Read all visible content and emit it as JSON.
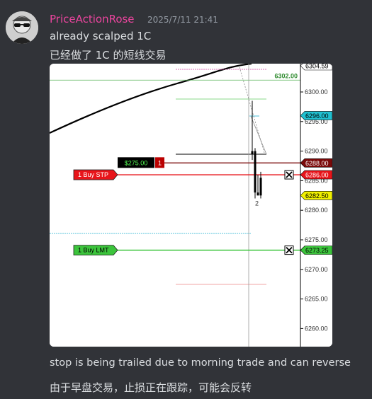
{
  "message": {
    "username": "PriceActionRose",
    "timestamp": "2025/7/11 21:41",
    "lines": [
      "already scalped 1C",
      "已经做了 1C 的短线交易",
      "stop is being trailed due to morning trade and can reverse",
      "由于早盘交易，止损正在跟踪，可能会反转"
    ]
  },
  "colors": {
    "username": "#eb459e",
    "stop_order": "#e8141a",
    "limit_order": "#3cc43c",
    "current_price_tag": "#20c0d0",
    "position_tag": "#7a0a0a",
    "last_tag": "#f0f000"
  },
  "chart_data": {
    "type": "candlestick",
    "y_axis": {
      "ticks": [
        "6260.00",
        "6265.00",
        "6270.00",
        "6275.00",
        "6280.00",
        "6285.00",
        "6290.00",
        "6295.00",
        "6300.00"
      ],
      "range": [
        6258,
        6305
      ]
    },
    "price_tags": [
      {
        "label": "6304.59",
        "price": 6304.59,
        "style": "white"
      },
      {
        "label": "6296.00",
        "price": 6296.0,
        "style": "cyan"
      },
      {
        "label": "6288.00",
        "price": 6288.0,
        "style": "position"
      },
      {
        "label": "6286.00",
        "price": 6286.0,
        "style": "stop"
      },
      {
        "label": "6282.50",
        "price": 6282.5,
        "style": "last"
      },
      {
        "label": "6273.25",
        "price": 6273.25,
        "style": "limit"
      }
    ],
    "level_label": {
      "text": "6302.00",
      "price": 6302.0
    },
    "position": {
      "pnl": "$275.00",
      "qty": "1",
      "price": 6288.0
    },
    "orders": [
      {
        "label": "1  Buy STP",
        "price": 6286.0,
        "type": "stop"
      },
      {
        "label": "1  Buy LMT",
        "price": 6273.25,
        "type": "limit"
      }
    ],
    "bar_label": "2",
    "candles": [
      {
        "o": 6289.5,
        "h": 6298.5,
        "l": 6288.5,
        "c": 6290.0
      },
      {
        "o": 6290.0,
        "h": 6290.5,
        "l": 6282.0,
        "c": 6283.0
      },
      {
        "o": 6283.0,
        "h": 6286.0,
        "l": 6282.5,
        "c": 6282.5
      },
      {
        "o": 6285.5,
        "h": 6286.5,
        "l": 6282.0,
        "c": 6282.5
      }
    ]
  }
}
